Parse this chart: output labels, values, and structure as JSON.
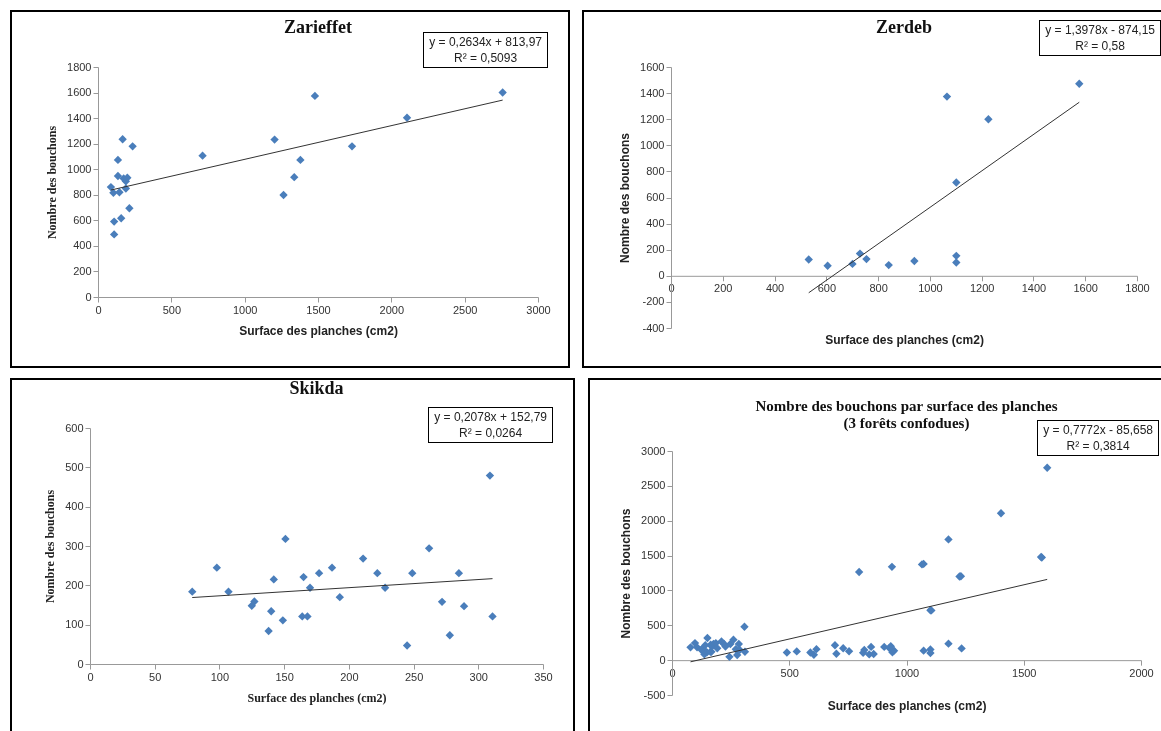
{
  "chart_data": [
    {
      "type": "scatter",
      "title": "Zarieffet",
      "xlabel": "Surface des planches (cm2)",
      "ylabel": "Nombre des bouchons",
      "xlim": [
        0,
        3000
      ],
      "xticks": [
        0,
        500,
        1000,
        1500,
        2000,
        2500,
        3000
      ],
      "ylim": [
        0,
        1800
      ],
      "yticks": [
        0,
        200,
        400,
        600,
        800,
        1000,
        1200,
        1400,
        1600,
        1800
      ],
      "annotations": [
        "y = 0,2634x + 813,97",
        "R² = 0,5093"
      ],
      "series": [
        {
          "type": "scatter",
          "marker": "diamond",
          "color": "#4a7ebb",
          "x": [
            88,
            105,
            110,
            110,
            136,
            136,
            146,
            158,
            168,
            175,
            190,
            190,
            200,
            214,
            236,
            713,
            1204,
            1265,
            1338,
            1380,
            1479,
            1732,
            2107,
            2759
          ],
          "values": [
            860,
            815,
            590,
            490,
            1073,
            947,
            820,
            616,
            1235,
            927,
            849,
            905,
            933,
            695,
            1179,
            1106,
            1232,
            798,
            938,
            1073,
            1574,
            1179,
            1403,
            1600
          ]
        },
        {
          "type": "line",
          "color": "#333333",
          "x": [
            88,
            2759
          ],
          "values": [
            837,
            1541
          ]
        }
      ]
    },
    {
      "type": "scatter",
      "title": "Zerdeb",
      "xlabel": "Surface des planches (cm2)",
      "ylabel": "Nombre des bouchons",
      "xlim": [
        0,
        1800
      ],
      "xticks": [
        0,
        200,
        400,
        600,
        800,
        1000,
        1200,
        1400,
        1600,
        1800
      ],
      "ylim": [
        -400,
        1600
      ],
      "yticks": [
        -400,
        -200,
        0,
        200,
        400,
        600,
        800,
        1000,
        1200,
        1400,
        1600
      ],
      "annotations": [
        "y = 1,3978x - 874,15",
        "R² = 0,58"
      ],
      "series": [
        {
          "type": "scatter",
          "marker": "diamond",
          "color": "#4a7ebb",
          "x": [
            532,
            605,
            701,
            730,
            755,
            841,
            940,
            1066,
            1102,
            1102,
            1102,
            1226,
            1577
          ],
          "values": [
            125,
            77,
            91,
            170,
            128,
            82,
            113,
            1373,
            715,
            153,
            102,
            1200,
            1472
          ]
        },
        {
          "type": "line",
          "color": "#333333",
          "x": [
            532,
            1577
          ],
          "values": [
            -130,
            1330
          ]
        }
      ]
    },
    {
      "type": "scatter",
      "title": "Skikda",
      "xlabel": "Surface des planches (cm2)",
      "ylabel": "Nombre des bouchons",
      "xlim": [
        0,
        350
      ],
      "xticks": [
        0,
        50,
        100,
        150,
        200,
        250,
        300,
        350
      ],
      "ylim": [
        0,
        600
      ],
      "yticks": [
        0,
        100,
        200,
        300,
        400,
        500,
        600
      ],
      "annotations": [
        "y = 0,2078x + 152,79",
        "R² = 0,0264"
      ],
      "series": [
        {
          "type": "scatter",
          "marker": "diamond",
          "color": "#4a7ebb",
          "x": [
            79,
            98,
            107,
            125,
            127,
            140,
            138,
            142,
            149,
            151,
            164,
            165,
            168,
            170,
            177,
            187,
            193,
            211,
            222,
            228,
            245,
            249,
            262,
            272,
            278,
            285,
            289,
            309,
            311
          ],
          "values": [
            184,
            245,
            184,
            148,
            159,
            134,
            84,
            215,
            111,
            318,
            121,
            221,
            121,
            194,
            231,
            245,
            170,
            268,
            231,
            194,
            47,
            231,
            294,
            158,
            73,
            231,
            147,
            479,
            121
          ]
        },
        {
          "type": "line",
          "color": "#333333",
          "x": [
            79,
            311
          ],
          "values": [
            169,
            217
          ]
        }
      ]
    },
    {
      "type": "scatter",
      "title": "Nombre des bouchons par surface des planches",
      "subtitle": "(3 forêts confodues)",
      "xlabel": "Surface des planches (cm2)",
      "ylabel": "Nombre des bouchons",
      "xlim": [
        0,
        2000
      ],
      "xticks": [
        0,
        500,
        1000,
        1500,
        2000
      ],
      "ylim": [
        -500,
        3000
      ],
      "yticks": [
        -500,
        0,
        500,
        1000,
        1500,
        2000,
        2500,
        3000
      ],
      "annotations": [
        "y = 0,7772x - 85,658",
        "R² = 0,3814"
      ],
      "series": [
        {
          "type": "scatter",
          "marker": "diamond",
          "color": "#4a7ebb",
          "x": [
            79,
            98,
            107,
            125,
            127,
            140,
            138,
            142,
            149,
            151,
            164,
            165,
            168,
            170,
            177,
            187,
            193,
            211,
            222,
            228,
            245,
            249,
            262,
            272,
            278,
            285,
            289,
            309,
            311,
            532,
            605,
            701,
            730,
            755,
            841,
            940,
            1066,
            1102,
            1102,
            1102,
            1226,
            1577,
            860,
            815,
            590,
            490,
            1073,
            947,
            820,
            616,
            1235,
            927,
            849,
            905,
            933,
            695,
            1179,
            1106,
            1232,
            798,
            938,
            1073,
            1574,
            1179,
            1403,
            1600
          ],
          "values": [
            184,
            245,
            184,
            148,
            159,
            134,
            84,
            215,
            111,
            318,
            121,
            221,
            121,
            194,
            231,
            245,
            170,
            268,
            231,
            194,
            47,
            231,
            294,
            158,
            73,
            231,
            147,
            479,
            121,
            125,
            77,
            91,
            170,
            128,
            82,
            113,
            1373,
            715,
            153,
            102,
            1200,
            1472,
            88,
            105,
            110,
            110,
            136,
            136,
            146,
            158,
            168,
            175,
            190,
            190,
            200,
            214,
            236,
            713,
            1204,
            1265,
            1338,
            1380,
            1479,
            1732,
            2107,
            2759
          ]
        },
        {
          "type": "line",
          "color": "#333333",
          "x": [
            79,
            1600
          ],
          "values": [
            -24,
            1158
          ]
        }
      ]
    }
  ]
}
